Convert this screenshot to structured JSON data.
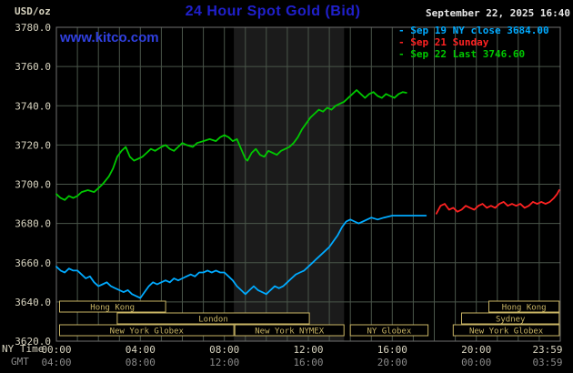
{
  "header": {
    "unit_label": "USD/oz",
    "title": "24 Hour Spot Gold (Bid)",
    "timestamp": "September 22, 2025 16:40",
    "watermark": "www.kitco.com"
  },
  "axis_labels": {
    "ny_time": "NY Time",
    "gmt": "GMT"
  },
  "colors": {
    "background": "#000000",
    "title_blue": "#2020cc",
    "watermark_blue": "#3040e0",
    "grid": "#4a564a",
    "plot_border": "#6f6f6f",
    "band": "#1b1b1b",
    "session": "#c8b464",
    "tick_text": "#d8d4c0",
    "gmt_text": "#8a8a8a",
    "timestamp_text": "#e8e8e8"
  },
  "chart_data": {
    "type": "line",
    "title": "24 Hour Spot Gold (Bid)",
    "ylabel": "USD/oz",
    "xlabel": "NY Time",
    "xlim": [
      0,
      24
    ],
    "ylim": [
      3620,
      3780
    ],
    "grid": true,
    "legend_position": "top-right",
    "y_ticks": [
      3620,
      3640,
      3660,
      3680,
      3700,
      3720,
      3740,
      3760,
      3780
    ],
    "x_ticks": [
      {
        "h": 0,
        "ny": "00:00",
        "gmt": "04:00"
      },
      {
        "h": 4,
        "ny": "04:00",
        "gmt": "08:00"
      },
      {
        "h": 8,
        "ny": "08:00",
        "gmt": "12:00"
      },
      {
        "h": 12,
        "ny": "12:00",
        "gmt": "16:00"
      },
      {
        "h": 16,
        "ny": "16:00",
        "gmt": "20:00"
      },
      {
        "h": 20,
        "ny": "20:00",
        "gmt": "00:00"
      },
      {
        "h": 23.983,
        "ny": "23:59",
        "gmt": "03:59"
      }
    ],
    "band": {
      "from": 8.45,
      "to": 13.7
    },
    "series": [
      {
        "name": "Sep 19 NY close 3684.00",
        "color": "#00aaff",
        "points": [
          [
            0,
            3658
          ],
          [
            0.2,
            3656
          ],
          [
            0.4,
            3655
          ],
          [
            0.6,
            3657
          ],
          [
            0.8,
            3656
          ],
          [
            1,
            3656
          ],
          [
            1.2,
            3654
          ],
          [
            1.4,
            3652
          ],
          [
            1.6,
            3653
          ],
          [
            1.8,
            3650
          ],
          [
            2,
            3648
          ],
          [
            2.2,
            3649
          ],
          [
            2.4,
            3650
          ],
          [
            2.6,
            3648
          ],
          [
            2.8,
            3647
          ],
          [
            3,
            3646
          ],
          [
            3.2,
            3645
          ],
          [
            3.4,
            3646
          ],
          [
            3.6,
            3644
          ],
          [
            3.8,
            3643
          ],
          [
            4,
            3642
          ],
          [
            4.2,
            3645
          ],
          [
            4.4,
            3648
          ],
          [
            4.6,
            3650
          ],
          [
            4.8,
            3649
          ],
          [
            5,
            3650
          ],
          [
            5.2,
            3651
          ],
          [
            5.4,
            3650
          ],
          [
            5.6,
            3652
          ],
          [
            5.8,
            3651
          ],
          [
            6,
            3652
          ],
          [
            6.2,
            3653
          ],
          [
            6.4,
            3654
          ],
          [
            6.6,
            3653
          ],
          [
            6.8,
            3655
          ],
          [
            7,
            3655
          ],
          [
            7.2,
            3656
          ],
          [
            7.4,
            3655
          ],
          [
            7.6,
            3656
          ],
          [
            7.8,
            3655
          ],
          [
            8,
            3655
          ],
          [
            8.2,
            3653
          ],
          [
            8.4,
            3651
          ],
          [
            8.6,
            3648
          ],
          [
            8.8,
            3646
          ],
          [
            9,
            3644
          ],
          [
            9.2,
            3646
          ],
          [
            9.4,
            3648
          ],
          [
            9.6,
            3646
          ],
          [
            9.8,
            3645
          ],
          [
            10,
            3644
          ],
          [
            10.2,
            3646
          ],
          [
            10.4,
            3648
          ],
          [
            10.6,
            3647
          ],
          [
            10.8,
            3648
          ],
          [
            11,
            3650
          ],
          [
            11.2,
            3652
          ],
          [
            11.4,
            3654
          ],
          [
            11.6,
            3655
          ],
          [
            11.8,
            3656
          ],
          [
            12,
            3658
          ],
          [
            12.2,
            3660
          ],
          [
            12.4,
            3662
          ],
          [
            12.6,
            3664
          ],
          [
            12.8,
            3666
          ],
          [
            13,
            3668
          ],
          [
            13.2,
            3671
          ],
          [
            13.4,
            3674
          ],
          [
            13.6,
            3678
          ],
          [
            13.8,
            3681
          ],
          [
            14,
            3682
          ],
          [
            14.2,
            3681
          ],
          [
            14.4,
            3680
          ],
          [
            14.6,
            3681
          ],
          [
            14.8,
            3682
          ],
          [
            15,
            3683
          ],
          [
            15.3,
            3682
          ],
          [
            15.6,
            3683
          ],
          [
            16,
            3684
          ],
          [
            16.4,
            3684
          ],
          [
            16.8,
            3684
          ],
          [
            17.2,
            3684
          ],
          [
            17.6,
            3684
          ]
        ]
      },
      {
        "name": "Sep 21 Sunday",
        "color": "#ff2222",
        "points": [
          [
            18.1,
            3685
          ],
          [
            18.3,
            3689
          ],
          [
            18.5,
            3690
          ],
          [
            18.7,
            3687
          ],
          [
            18.9,
            3688
          ],
          [
            19.1,
            3686
          ],
          [
            19.3,
            3687
          ],
          [
            19.5,
            3689
          ],
          [
            19.7,
            3688
          ],
          [
            19.9,
            3687
          ],
          [
            20.1,
            3689
          ],
          [
            20.3,
            3690
          ],
          [
            20.5,
            3688
          ],
          [
            20.7,
            3689
          ],
          [
            20.9,
            3688
          ],
          [
            21.1,
            3690
          ],
          [
            21.3,
            3691
          ],
          [
            21.5,
            3689
          ],
          [
            21.7,
            3690
          ],
          [
            21.9,
            3689
          ],
          [
            22.1,
            3690
          ],
          [
            22.3,
            3688
          ],
          [
            22.5,
            3689
          ],
          [
            22.7,
            3691
          ],
          [
            22.9,
            3690
          ],
          [
            23.1,
            3691
          ],
          [
            23.3,
            3690
          ],
          [
            23.5,
            3691
          ],
          [
            23.7,
            3693
          ],
          [
            23.85,
            3695
          ],
          [
            23.95,
            3697
          ]
        ]
      },
      {
        "name": "Sep 22 Last 3746.60",
        "color": "#00c800",
        "points": [
          [
            0,
            3695
          ],
          [
            0.2,
            3693
          ],
          [
            0.4,
            3692
          ],
          [
            0.6,
            3694
          ],
          [
            0.8,
            3693
          ],
          [
            1,
            3694
          ],
          [
            1.2,
            3696
          ],
          [
            1.5,
            3697
          ],
          [
            1.8,
            3696
          ],
          [
            2,
            3698
          ],
          [
            2.2,
            3700
          ],
          [
            2.5,
            3704
          ],
          [
            2.7,
            3708
          ],
          [
            2.9,
            3714
          ],
          [
            3.1,
            3717
          ],
          [
            3.3,
            3719
          ],
          [
            3.5,
            3714
          ],
          [
            3.7,
            3712
          ],
          [
            3.9,
            3713
          ],
          [
            4.1,
            3714
          ],
          [
            4.3,
            3716
          ],
          [
            4.5,
            3718
          ],
          [
            4.7,
            3717
          ],
          [
            5,
            3719
          ],
          [
            5.2,
            3720
          ],
          [
            5.4,
            3718
          ],
          [
            5.6,
            3717
          ],
          [
            5.8,
            3719
          ],
          [
            6,
            3721
          ],
          [
            6.2,
            3720
          ],
          [
            6.5,
            3719
          ],
          [
            6.7,
            3721
          ],
          [
            7,
            3722
          ],
          [
            7.3,
            3723
          ],
          [
            7.6,
            3722
          ],
          [
            7.8,
            3724
          ],
          [
            8,
            3725
          ],
          [
            8.2,
            3724
          ],
          [
            8.4,
            3722
          ],
          [
            8.6,
            3723
          ],
          [
            8.8,
            3718
          ],
          [
            9,
            3713
          ],
          [
            9.1,
            3712
          ],
          [
            9.3,
            3716
          ],
          [
            9.5,
            3718
          ],
          [
            9.7,
            3715
          ],
          [
            9.9,
            3714
          ],
          [
            10.1,
            3717
          ],
          [
            10.3,
            3716
          ],
          [
            10.5,
            3715
          ],
          [
            10.7,
            3717
          ],
          [
            10.9,
            3718
          ],
          [
            11.1,
            3719
          ],
          [
            11.3,
            3721
          ],
          [
            11.5,
            3724
          ],
          [
            11.7,
            3728
          ],
          [
            11.9,
            3731
          ],
          [
            12.1,
            3734
          ],
          [
            12.3,
            3736
          ],
          [
            12.5,
            3738
          ],
          [
            12.7,
            3737
          ],
          [
            12.9,
            3739
          ],
          [
            13.1,
            3738
          ],
          [
            13.3,
            3740
          ],
          [
            13.5,
            3741
          ],
          [
            13.7,
            3742
          ],
          [
            13.9,
            3744
          ],
          [
            14.1,
            3746
          ],
          [
            14.3,
            3748
          ],
          [
            14.5,
            3746
          ],
          [
            14.7,
            3744
          ],
          [
            14.9,
            3746
          ],
          [
            15.1,
            3747
          ],
          [
            15.3,
            3745
          ],
          [
            15.5,
            3744
          ],
          [
            15.7,
            3746
          ],
          [
            15.9,
            3745
          ],
          [
            16.1,
            3744
          ],
          [
            16.3,
            3746
          ],
          [
            16.5,
            3747
          ],
          [
            16.67,
            3746.6
          ]
        ]
      }
    ],
    "sessions": [
      {
        "row": 0,
        "label": "Hong Kong",
        "from": 0.15,
        "to": 5.2
      },
      {
        "row": 0,
        "label": "Hong Kong",
        "from": 20.6,
        "to": 23.95
      },
      {
        "row": 1,
        "label": "London",
        "from": 2.9,
        "to": 12.05
      },
      {
        "row": 1,
        "label": "Sydney",
        "from": 19.3,
        "to": 23.95
      },
      {
        "row": 2,
        "label": "New York Globex",
        "from": 0.15,
        "to": 8.45
      },
      {
        "row": 2,
        "label": "New York NYMEX",
        "from": 8.5,
        "to": 13.7
      },
      {
        "row": 2,
        "label": "NY Globex",
        "from": 14.0,
        "to": 17.7
      },
      {
        "row": 2,
        "label": "New York Globex",
        "from": 18.9,
        "to": 23.95
      }
    ]
  }
}
